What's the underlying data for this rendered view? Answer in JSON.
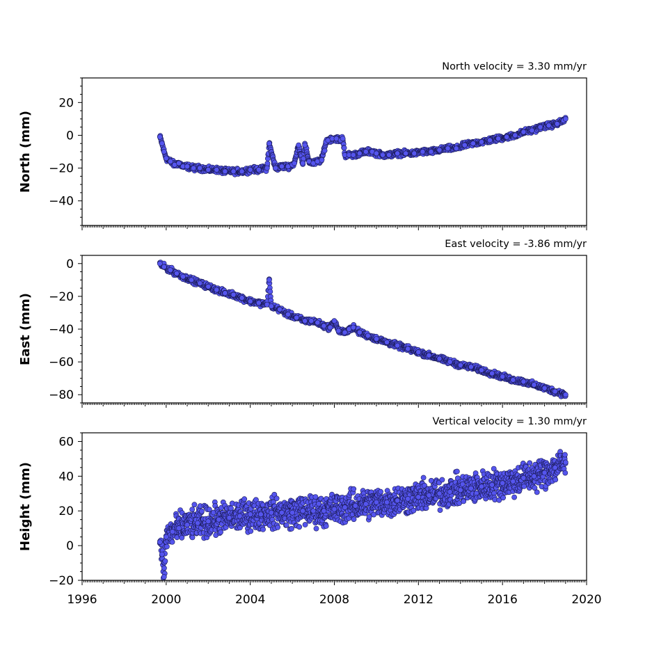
{
  "chart_data": [
    {
      "type": "scatter",
      "title": "North velocity = 3.30 mm/yr",
      "ylabel": "North (mm)",
      "xlim": [
        1996,
        2020
      ],
      "ylim": [
        -55,
        35
      ],
      "yticks": [
        20,
        0,
        -20,
        -40
      ],
      "ytick_labels": [
        "20",
        "0",
        "−20",
        "−40"
      ],
      "marker_color": "#5555ee",
      "edge_color": "#1a1a55",
      "series": [
        {
          "x": [
            1999.7,
            1999.8,
            1999.9,
            2000.0,
            2000.2,
            2000.4,
            2000.6,
            2000.8,
            2001.0,
            2001.3,
            2001.6,
            2002.0,
            2002.4,
            2002.8,
            2003.2,
            2003.6,
            2004.0,
            2004.4,
            2004.8,
            2004.9,
            2005.2,
            2005.5,
            2005.8,
            2006.0,
            2006.1,
            2006.3,
            2006.5,
            2006.6,
            2006.8,
            2007.0,
            2007.2,
            2007.4,
            2007.6,
            2007.7,
            2007.9,
            2008.1,
            2008.3,
            2008.4,
            2008.5,
            2008.7,
            2008.9,
            2009.2,
            2009.5,
            2009.8,
            2010.0,
            2010.3,
            2010.6,
            2011.0,
            2011.4,
            2011.8,
            2012.2,
            2012.6,
            2013.0,
            2013.4,
            2013.8,
            2014.2,
            2014.6,
            2015.0,
            2015.4,
            2015.8,
            2016.2,
            2016.6,
            2017.0,
            2017.4,
            2017.8,
            2018.2,
            2018.6,
            2018.9,
            2019.0
          ],
          "y": [
            -1,
            -5,
            -10,
            -14,
            -16,
            -18,
            -17,
            -19,
            -19,
            -20,
            -20,
            -21,
            -21,
            -22,
            -22,
            -22,
            -21,
            -21,
            -20,
            -5,
            -20,
            -19,
            -19,
            -18,
            -17,
            -6,
            -17,
            -6,
            -16,
            -17,
            -16,
            -15,
            -4,
            -3,
            -2,
            -2,
            -3,
            -2,
            -12,
            -12,
            -12,
            -11,
            -10,
            -10,
            -11,
            -12,
            -12,
            -11,
            -11,
            -11,
            -10,
            -10,
            -9,
            -8,
            -8,
            -6,
            -5,
            -4,
            -3,
            -2,
            -1,
            0,
            2,
            3,
            5,
            6,
            7,
            9,
            10
          ]
        }
      ]
    },
    {
      "type": "scatter",
      "title": "East velocity = -3.86 mm/yr",
      "ylabel": "East (mm)",
      "xlim": [
        1996,
        2020
      ],
      "ylim": [
        -85,
        5
      ],
      "yticks": [
        0,
        -20,
        -40,
        -60,
        -80
      ],
      "ytick_labels": [
        "0",
        "−20",
        "−40",
        "−60",
        "−80"
      ],
      "marker_color": "#5555ee",
      "edge_color": "#1a1a55",
      "series": [
        {
          "x": [
            1999.7,
            1999.9,
            2000.2,
            2000.5,
            2000.8,
            2001.2,
            2001.6,
            2002.0,
            2002.4,
            2002.8,
            2003.2,
            2003.6,
            2004.0,
            2004.4,
            2004.8,
            2004.9,
            2005.0,
            2005.4,
            2005.8,
            2006.2,
            2006.6,
            2006.9,
            2007.2,
            2007.5,
            2007.8,
            2008.0,
            2008.2,
            2008.5,
            2008.7,
            2008.9,
            2009.2,
            2009.6,
            2010.0,
            2010.5,
            2011.0,
            2011.5,
            2012.0,
            2012.5,
            2013.0,
            2013.5,
            2014.0,
            2014.5,
            2015.0,
            2015.5,
            2016.0,
            2016.5,
            2017.0,
            2017.5,
            2018.0,
            2018.5,
            2019.0
          ],
          "y": [
            0,
            -2,
            -4,
            -6,
            -8,
            -10,
            -12,
            -14,
            -16,
            -18,
            -19,
            -21,
            -23,
            -24,
            -25,
            -10,
            -26,
            -28,
            -31,
            -33,
            -35,
            -35,
            -36,
            -38,
            -39,
            -35,
            -41,
            -42,
            -40,
            -39,
            -42,
            -44,
            -46,
            -48,
            -50,
            -52,
            -54,
            -56,
            -58,
            -60,
            -62,
            -63,
            -65,
            -67,
            -69,
            -71,
            -72,
            -74,
            -76,
            -78,
            -80
          ]
        }
      ]
    },
    {
      "type": "scatter",
      "title": "Vertical velocity = 1.30 mm/yr",
      "ylabel": "Height (mm)",
      "xlabel": "",
      "xlim": [
        1996,
        2020
      ],
      "ylim": [
        -20,
        65
      ],
      "yticks": [
        60,
        40,
        20,
        0,
        -20
      ],
      "ytick_labels": [
        "60",
        "40",
        "20",
        "0",
        "−20"
      ],
      "xticks": [
        1996,
        2000,
        2004,
        2008,
        2012,
        2016,
        2020
      ],
      "xtick_labels": [
        "1996",
        "2000",
        "2004",
        "2008",
        "2012",
        "2016",
        "2020"
      ],
      "marker_color": "#5555ee",
      "edge_color": "#1a1a55",
      "series": [
        {
          "x": [
            1999.7,
            1999.8,
            1999.9,
            2000.0,
            2000.3,
            2000.6,
            2001.0,
            2001.5,
            2002.0,
            2002.5,
            2003.0,
            2003.5,
            2004.0,
            2004.5,
            2005.0,
            2005.5,
            2006.0,
            2006.5,
            2007.0,
            2007.5,
            2008.0,
            2008.5,
            2009.0,
            2009.5,
            2010.0,
            2010.5,
            2011.0,
            2011.5,
            2012.0,
            2012.5,
            2013.0,
            2013.5,
            2014.0,
            2014.5,
            2015.0,
            2015.5,
            2016.0,
            2016.5,
            2017.0,
            2017.5,
            2018.0,
            2018.5,
            2019.0
          ],
          "y": [
            2,
            -5,
            -18,
            5,
            8,
            10,
            12,
            13,
            14,
            15,
            16,
            17,
            18,
            18,
            19,
            19,
            19,
            20,
            20,
            20,
            21,
            22,
            23,
            24,
            25,
            25,
            26,
            27,
            28,
            29,
            30,
            31,
            32,
            33,
            34,
            35,
            36,
            37,
            39,
            40,
            42,
            45,
            48
          ]
        }
      ]
    }
  ]
}
